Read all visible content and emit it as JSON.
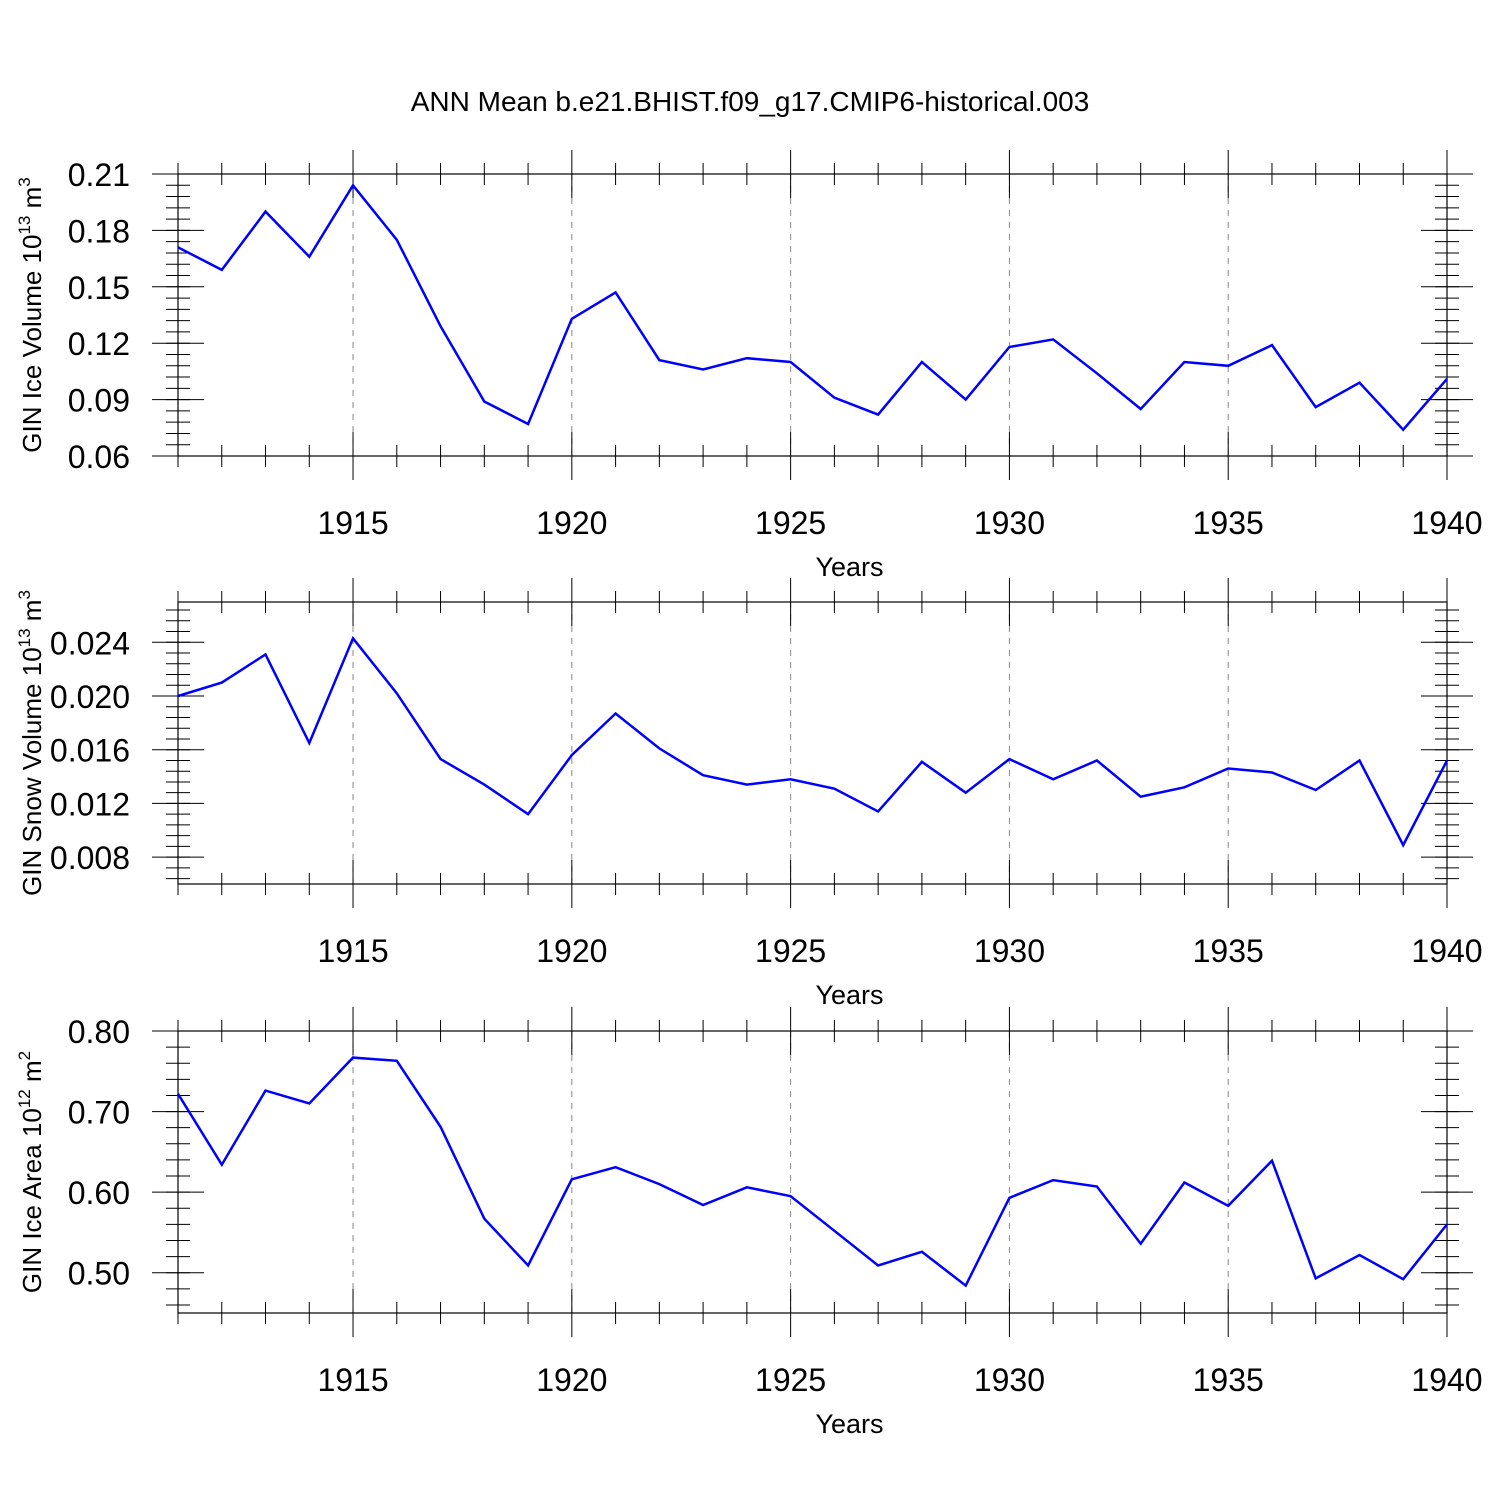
{
  "title": "ANN Mean b.e21.BHIST.f09_g17.CMIP6-historical.003",
  "line_color": "#0000ff",
  "chart_data": [
    {
      "type": "line",
      "ylabel": "GIN Ice Volume 10",
      "ylabel_exp": "13",
      "ylabel_unit": " m",
      "ylabel_unit_exp": "3",
      "xlabel": "Years",
      "xlim": [
        1911,
        1940
      ],
      "ylim": [
        0.06,
        0.21
      ],
      "yticks": [
        0.06,
        0.09,
        0.12,
        0.15,
        0.18,
        0.21
      ],
      "ytick_labels": [
        "0.06",
        "0.09",
        "0.12",
        "0.15",
        "0.18",
        "0.21"
      ],
      "xticks": [
        1915,
        1920,
        1925,
        1930,
        1935,
        1940
      ],
      "xtick_labels": [
        "1915",
        "1920",
        "1925",
        "1930",
        "1935",
        "1940"
      ],
      "grid": "vertical dashed lines at labeled years",
      "x": [
        1911,
        1912,
        1913,
        1914,
        1915,
        1916,
        1917,
        1918,
        1919,
        1920,
        1921,
        1922,
        1923,
        1924,
        1925,
        1926,
        1927,
        1928,
        1929,
        1930,
        1931,
        1932,
        1933,
        1934,
        1935,
        1936,
        1937,
        1938,
        1939,
        1940
      ],
      "values": [
        0.171,
        0.159,
        0.19,
        0.166,
        0.204,
        0.175,
        0.129,
        0.089,
        0.077,
        0.133,
        0.147,
        0.111,
        0.106,
        0.112,
        0.11,
        0.091,
        0.082,
        0.11,
        0.09,
        0.118,
        0.122,
        0.104,
        0.085,
        0.11,
        0.108,
        0.119,
        0.086,
        0.099,
        0.074,
        0.101
      ]
    },
    {
      "type": "line",
      "ylabel": "GIN Snow Volume 10",
      "ylabel_exp": "13",
      "ylabel_unit": " m",
      "ylabel_unit_exp": "3",
      "xlabel": "Years",
      "xlim": [
        1911,
        1940
      ],
      "ylim": [
        0.006,
        0.027
      ],
      "yticks": [
        0.008,
        0.012,
        0.016,
        0.02,
        0.024
      ],
      "ytick_labels": [
        "0.008",
        "0.012",
        "0.016",
        "0.020",
        "0.024"
      ],
      "xticks": [
        1915,
        1920,
        1925,
        1930,
        1935,
        1940
      ],
      "xtick_labels": [
        "1915",
        "1920",
        "1925",
        "1930",
        "1935",
        "1940"
      ],
      "grid": "vertical dashed lines at labeled years",
      "x": [
        1911,
        1912,
        1913,
        1914,
        1915,
        1916,
        1917,
        1918,
        1919,
        1920,
        1921,
        1922,
        1923,
        1924,
        1925,
        1926,
        1927,
        1928,
        1929,
        1930,
        1931,
        1932,
        1933,
        1934,
        1935,
        1936,
        1937,
        1938,
        1939,
        1940
      ],
      "values": [
        0.02,
        0.021,
        0.0231,
        0.0165,
        0.0243,
        0.0202,
        0.0153,
        0.0134,
        0.0112,
        0.0156,
        0.0187,
        0.0161,
        0.0141,
        0.0134,
        0.0138,
        0.0131,
        0.0114,
        0.0151,
        0.0128,
        0.0153,
        0.0138,
        0.0152,
        0.0125,
        0.0132,
        0.0146,
        0.0143,
        0.013,
        0.0152,
        0.0089,
        0.0152
      ]
    },
    {
      "type": "line",
      "ylabel": "GIN Ice Area 10",
      "ylabel_exp": "12",
      "ylabel_unit": " m",
      "ylabel_unit_exp": "2",
      "xlabel": "Years",
      "xlim": [
        1911,
        1940
      ],
      "ylim": [
        0.45,
        0.8
      ],
      "yticks": [
        0.5,
        0.6,
        0.7,
        0.8
      ],
      "ytick_labels": [
        "0.50",
        "0.60",
        "0.70",
        "0.80"
      ],
      "xticks": [
        1915,
        1920,
        1925,
        1930,
        1935,
        1940
      ],
      "xtick_labels": [
        "1915",
        "1920",
        "1925",
        "1930",
        "1935",
        "1940"
      ],
      "grid": "vertical dashed lines at labeled years",
      "x": [
        1911,
        1912,
        1913,
        1914,
        1915,
        1916,
        1917,
        1918,
        1919,
        1920,
        1921,
        1922,
        1923,
        1924,
        1925,
        1926,
        1927,
        1928,
        1929,
        1930,
        1931,
        1932,
        1933,
        1934,
        1935,
        1936,
        1937,
        1938,
        1939,
        1940
      ],
      "values": [
        0.722,
        0.634,
        0.726,
        0.71,
        0.767,
        0.763,
        0.681,
        0.567,
        0.509,
        0.616,
        0.631,
        0.61,
        0.584,
        0.606,
        0.595,
        0.552,
        0.509,
        0.526,
        0.484,
        0.593,
        0.615,
        0.607,
        0.536,
        0.612,
        0.583,
        0.639,
        0.493,
        0.522,
        0.492,
        0.56
      ]
    }
  ]
}
